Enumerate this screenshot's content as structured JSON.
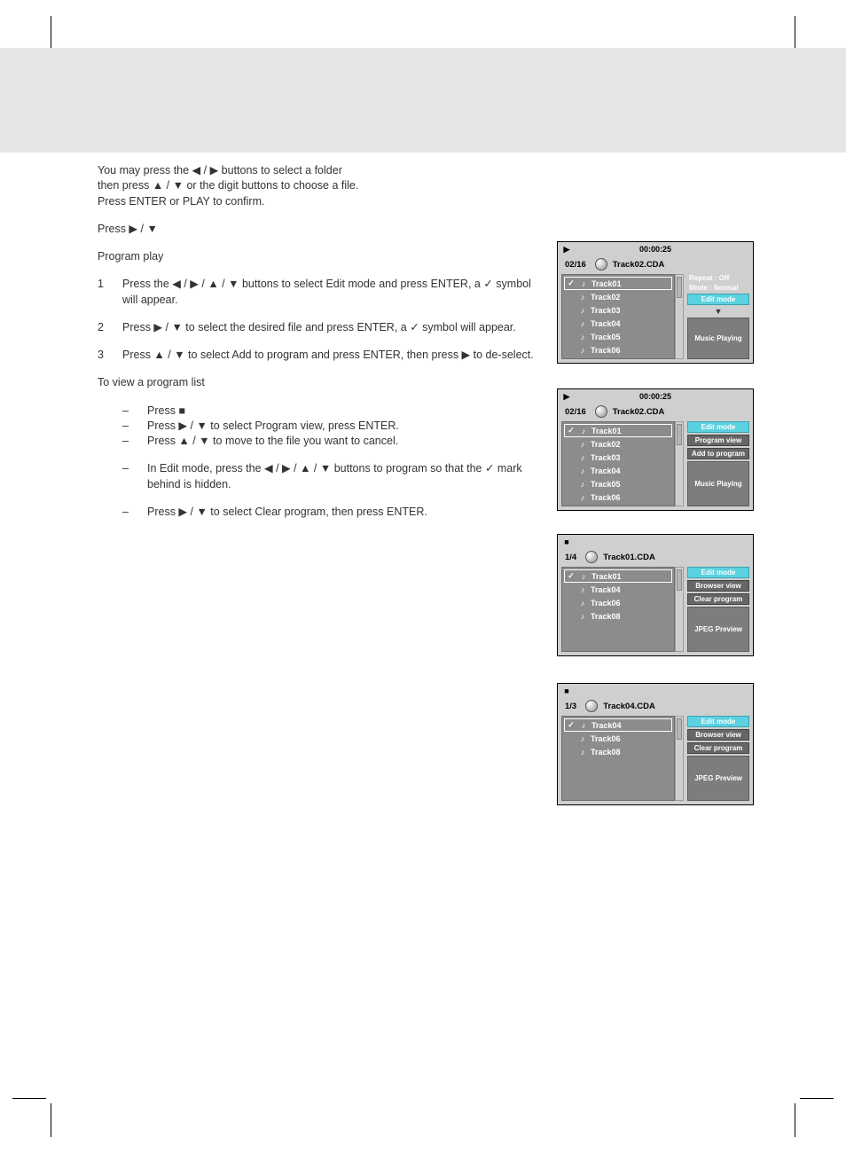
{
  "instructions": {
    "intro1": "You may press the ◀ / ▶ buttons to select a folder",
    "intro2": "then press ▲ / ▼ or the digit buttons to choose a file.",
    "intro3": "Press ENTER or PLAY to confirm.",
    "press_play_down": "Press ▶ / ▼",
    "prog_play_title": "Program play",
    "step1": "Press the ◀ / ▶ / ▲ / ▼ buttons to select Edit mode and press ENTER, a ✓ symbol will appear.",
    "step2": "Press ▶ / ▼ to select the desired file and press ENTER, a ✓ symbol will appear.",
    "step3": "Press ▲ / ▼ to select Add to program and press ENTER, then press ▶ to de-select.",
    "view_title": "To view a program list",
    "view_step1": "Press ■",
    "view_step2": "Press ▶ / ▼ to select Program view, press ENTER.",
    "view_step3": "Press ▲ / ▼ to move to the file you want to cancel.",
    "view_step4": "In Edit mode, press the ◀ / ▶ / ▲ / ▼ buttons to program so that the ✓ mark behind is hidden.",
    "view_step5": "Press ▶ / ▼ to select Clear program, then press ENTER."
  },
  "panel1": {
    "time": "00:00:25",
    "counter": "02/16",
    "current": "Track02.CDA",
    "tracks": [
      "Track01",
      "Track02",
      "Track03",
      "Track04",
      "Track05",
      "Track06"
    ],
    "selected_index": 0,
    "check_index": 0,
    "info_line1": "Repeat : Off",
    "info_line2": "Mode   : Normal",
    "btns": [
      "Edit mode"
    ],
    "preview": "Music Playing"
  },
  "panel2": {
    "time": "00:00:25",
    "counter": "02/16",
    "current": "Track02.CDA",
    "tracks": [
      "Track01",
      "Track02",
      "Track03",
      "Track04",
      "Track05",
      "Track06"
    ],
    "selected_index": 0,
    "check_index": 0,
    "btns": [
      "Edit mode",
      "Program view",
      "Add to program"
    ],
    "preview": "Music Playing"
  },
  "panel3": {
    "counter": "1/4",
    "current": "Track01.CDA",
    "tracks": [
      "Track01",
      "Track04",
      "Track06",
      "Track08"
    ],
    "selected_index": 0,
    "check_index": 0,
    "btns": [
      "Edit mode",
      "Browser view",
      "Clear program"
    ],
    "preview": "JPEG Preview"
  },
  "panel4": {
    "counter": "1/3",
    "current": "Track04.CDA",
    "tracks": [
      "Track04",
      "Track06",
      "Track08"
    ],
    "selected_index": 0,
    "check_index": 0,
    "btns": [
      "Edit mode",
      "Browser view",
      "Clear program"
    ],
    "preview": "JPEG Preview"
  },
  "colors": {
    "page_bg": "#ffffff",
    "band_bg": "#e6e6e6",
    "panel_bg": "#cfcfcf",
    "list_bg": "#8c8c8c",
    "btn_bg": "#666666",
    "btn_cyan": "#5bd0e0",
    "preview_bg": "#7d7d7d"
  }
}
